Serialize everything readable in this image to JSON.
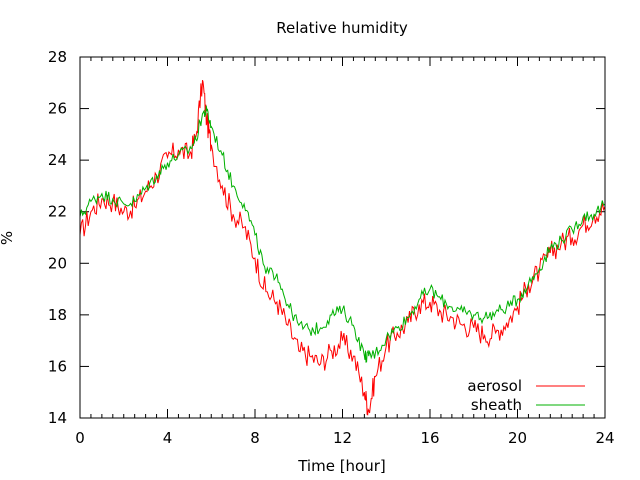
{
  "chart_data": {
    "type": "line",
    "title": "Relative humidity",
    "xlabel": "Time [hour]",
    "ylabel": "%",
    "xlim": [
      0,
      24
    ],
    "ylim": [
      14,
      28
    ],
    "xticks": [
      0,
      4,
      8,
      12,
      16,
      20,
      24
    ],
    "yticks": [
      14,
      16,
      18,
      20,
      22,
      24,
      26,
      28
    ],
    "grid": false,
    "legend_position": "bottom-right",
    "series": [
      {
        "name": "aerosol",
        "color": "#ff0000",
        "x": [
          0,
          0.5,
          1,
          1.5,
          2,
          2.5,
          3,
          3.5,
          4,
          4.5,
          5,
          5.3,
          5.6,
          5.8,
          6,
          6.5,
          7,
          7.5,
          8,
          8.5,
          9,
          9.5,
          10,
          10.5,
          11,
          11.5,
          12,
          12.5,
          13,
          13.2,
          13.5,
          14,
          14.5,
          15,
          15.5,
          16,
          16.5,
          17,
          17.5,
          18,
          18.5,
          19,
          19.5,
          20,
          20.5,
          21,
          21.5,
          22,
          22.5,
          23,
          23.5,
          24
        ],
        "y": [
          21.1,
          22.0,
          22.5,
          22.4,
          22.0,
          22.2,
          22.8,
          23.4,
          24.1,
          24.4,
          24.2,
          24.9,
          27.1,
          25.5,
          24.6,
          23.0,
          21.9,
          21.4,
          20.2,
          18.9,
          18.5,
          17.6,
          16.6,
          16.4,
          16.1,
          16.6,
          17.0,
          16.4,
          15.0,
          14.3,
          15.6,
          16.8,
          17.3,
          17.7,
          18.4,
          18.5,
          18.1,
          17.9,
          17.6,
          17.5,
          17.2,
          17.3,
          17.7,
          18.3,
          19.2,
          19.7,
          20.4,
          20.8,
          21.0,
          21.5,
          21.9,
          22.2
        ]
      },
      {
        "name": "sheath",
        "color": "#00b000",
        "x": [
          0,
          0.5,
          1,
          1.5,
          2,
          2.5,
          3,
          3.5,
          4,
          4.5,
          5,
          5.3,
          5.6,
          5.8,
          6,
          6.5,
          7,
          7.5,
          8,
          8.5,
          9,
          9.5,
          10,
          10.5,
          11,
          11.5,
          12,
          12.5,
          13,
          13.2,
          13.5,
          14,
          14.5,
          15,
          15.5,
          16,
          16.5,
          17,
          17.5,
          18,
          18.5,
          19,
          19.5,
          20,
          20.5,
          21,
          21.5,
          22,
          22.5,
          23,
          23.5,
          24
        ],
        "y": [
          21.8,
          22.4,
          22.7,
          22.5,
          22.3,
          22.4,
          22.9,
          23.4,
          23.9,
          24.2,
          24.4,
          24.8,
          25.8,
          25.9,
          25.3,
          24.2,
          23.0,
          22.3,
          21.1,
          19.6,
          19.6,
          18.4,
          17.6,
          17.4,
          17.5,
          18.0,
          18.2,
          17.6,
          16.4,
          16.4,
          16.5,
          17.1,
          17.5,
          17.9,
          18.6,
          19.0,
          18.6,
          18.3,
          18.1,
          18.0,
          17.9,
          18.1,
          18.3,
          18.6,
          19.2,
          19.8,
          20.6,
          20.9,
          21.3,
          21.8,
          21.9,
          22.3
        ]
      }
    ]
  }
}
